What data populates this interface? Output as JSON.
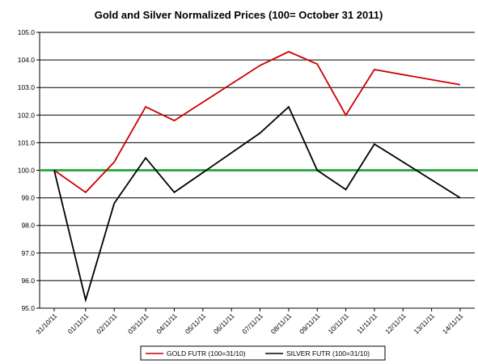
{
  "chart_data": {
    "type": "line",
    "title": "Gold and Silver Normalized Prices  (100= October 31 2011)",
    "xlabel": "",
    "ylabel": "",
    "categories": [
      "31/10/11",
      "01/11/11",
      "02/11/11",
      "03/11/11",
      "04/11/11",
      "05/11/11",
      "06/11/11",
      "07/11/11",
      "08/11/11",
      "09/11/11",
      "10/11/11",
      "11/11/11",
      "12/11/11",
      "13/11/11",
      "14/11/11"
    ],
    "x": [
      0,
      1.1,
      2.1,
      3.2,
      4.2,
      5.2,
      6.2,
      7.2,
      8.2,
      9.2,
      10.2,
      11.2,
      12.2,
      13.2,
      14.2
    ],
    "series": [
      {
        "name": "GOLD  FUTR (100=31/10)",
        "color": "#cc0000",
        "points": [
          [
            0,
            100.0
          ],
          [
            1.1,
            99.2
          ],
          [
            2.1,
            100.3
          ],
          [
            3.2,
            102.3
          ],
          [
            4.2,
            101.8
          ],
          [
            7.2,
            103.8
          ],
          [
            8.2,
            104.3
          ],
          [
            9.2,
            103.85
          ],
          [
            10.2,
            102.0
          ],
          [
            11.2,
            103.65
          ],
          [
            14.2,
            103.1
          ]
        ]
      },
      {
        "name": "SILVER  FUTR (100=31/10)",
        "color": "#000000",
        "points": [
          [
            0,
            100.0
          ],
          [
            1.1,
            95.3
          ],
          [
            2.1,
            98.8
          ],
          [
            3.2,
            100.45
          ],
          [
            4.2,
            99.2
          ],
          [
            7.2,
            101.35
          ],
          [
            8.2,
            102.3
          ],
          [
            9.2,
            100.0
          ],
          [
            10.2,
            99.3
          ],
          [
            11.2,
            100.95
          ],
          [
            14.2,
            99.0
          ]
        ]
      }
    ],
    "reference_line": {
      "y": 100.0,
      "color": "#33aa44"
    },
    "ylim": [
      95.0,
      105.0
    ],
    "y_ticks": [
      "95.0",
      "96.0",
      "97.0",
      "98.0",
      "99.0",
      "100.0",
      "101.0",
      "102.0",
      "103.0",
      "104.0",
      "105.0"
    ],
    "grid": true,
    "legend": "bottom"
  }
}
